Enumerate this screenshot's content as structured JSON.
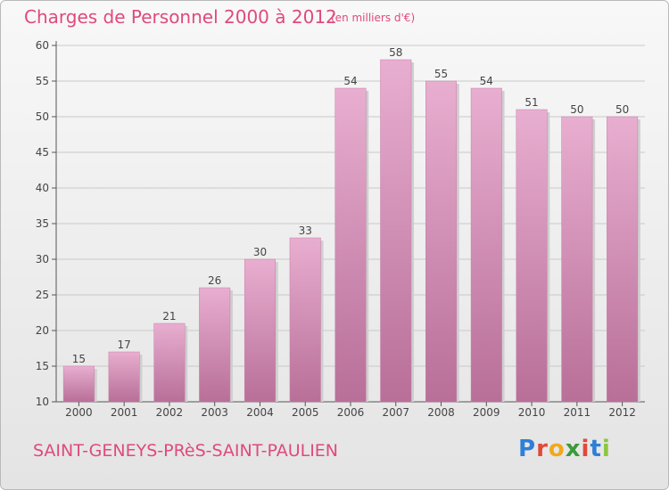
{
  "header": {
    "title": "Charges de Personnel 2000 à 2012",
    "subtitle": "(en milliers d'€)"
  },
  "footer": {
    "commune": "SAINT-GENEYS-PRèS-SAINT-PAULIEN",
    "logo_letters": [
      "P",
      "r",
      "o",
      "x",
      "i",
      "t",
      "i"
    ],
    "logo_colors": [
      "#2f7fd6",
      "#e0493a",
      "#f2a81d",
      "#3a9b3a",
      "#e0493a",
      "#2f7fd6",
      "#8cc63f"
    ]
  },
  "colors": {
    "bar": "#d98ab3",
    "bar_light": "#e8aed0",
    "bar_dark": "#b86f98",
    "title": "#e0497e"
  },
  "chart_data": {
    "type": "bar",
    "categories": [
      "2000",
      "2001",
      "2002",
      "2003",
      "2004",
      "2005",
      "2006",
      "2007",
      "2008",
      "2009",
      "2010",
      "2011",
      "2012"
    ],
    "values": [
      15,
      17,
      21,
      26,
      30,
      33,
      54,
      58,
      55,
      54,
      51,
      50,
      50
    ],
    "title": "Charges de Personnel 2000 à 2012",
    "subtitle": "(en milliers d'€)",
    "ylim": [
      10,
      60
    ],
    "yticks": [
      10,
      15,
      20,
      25,
      30,
      35,
      40,
      45,
      50,
      55,
      60
    ],
    "grid": true,
    "data_labels": true
  }
}
